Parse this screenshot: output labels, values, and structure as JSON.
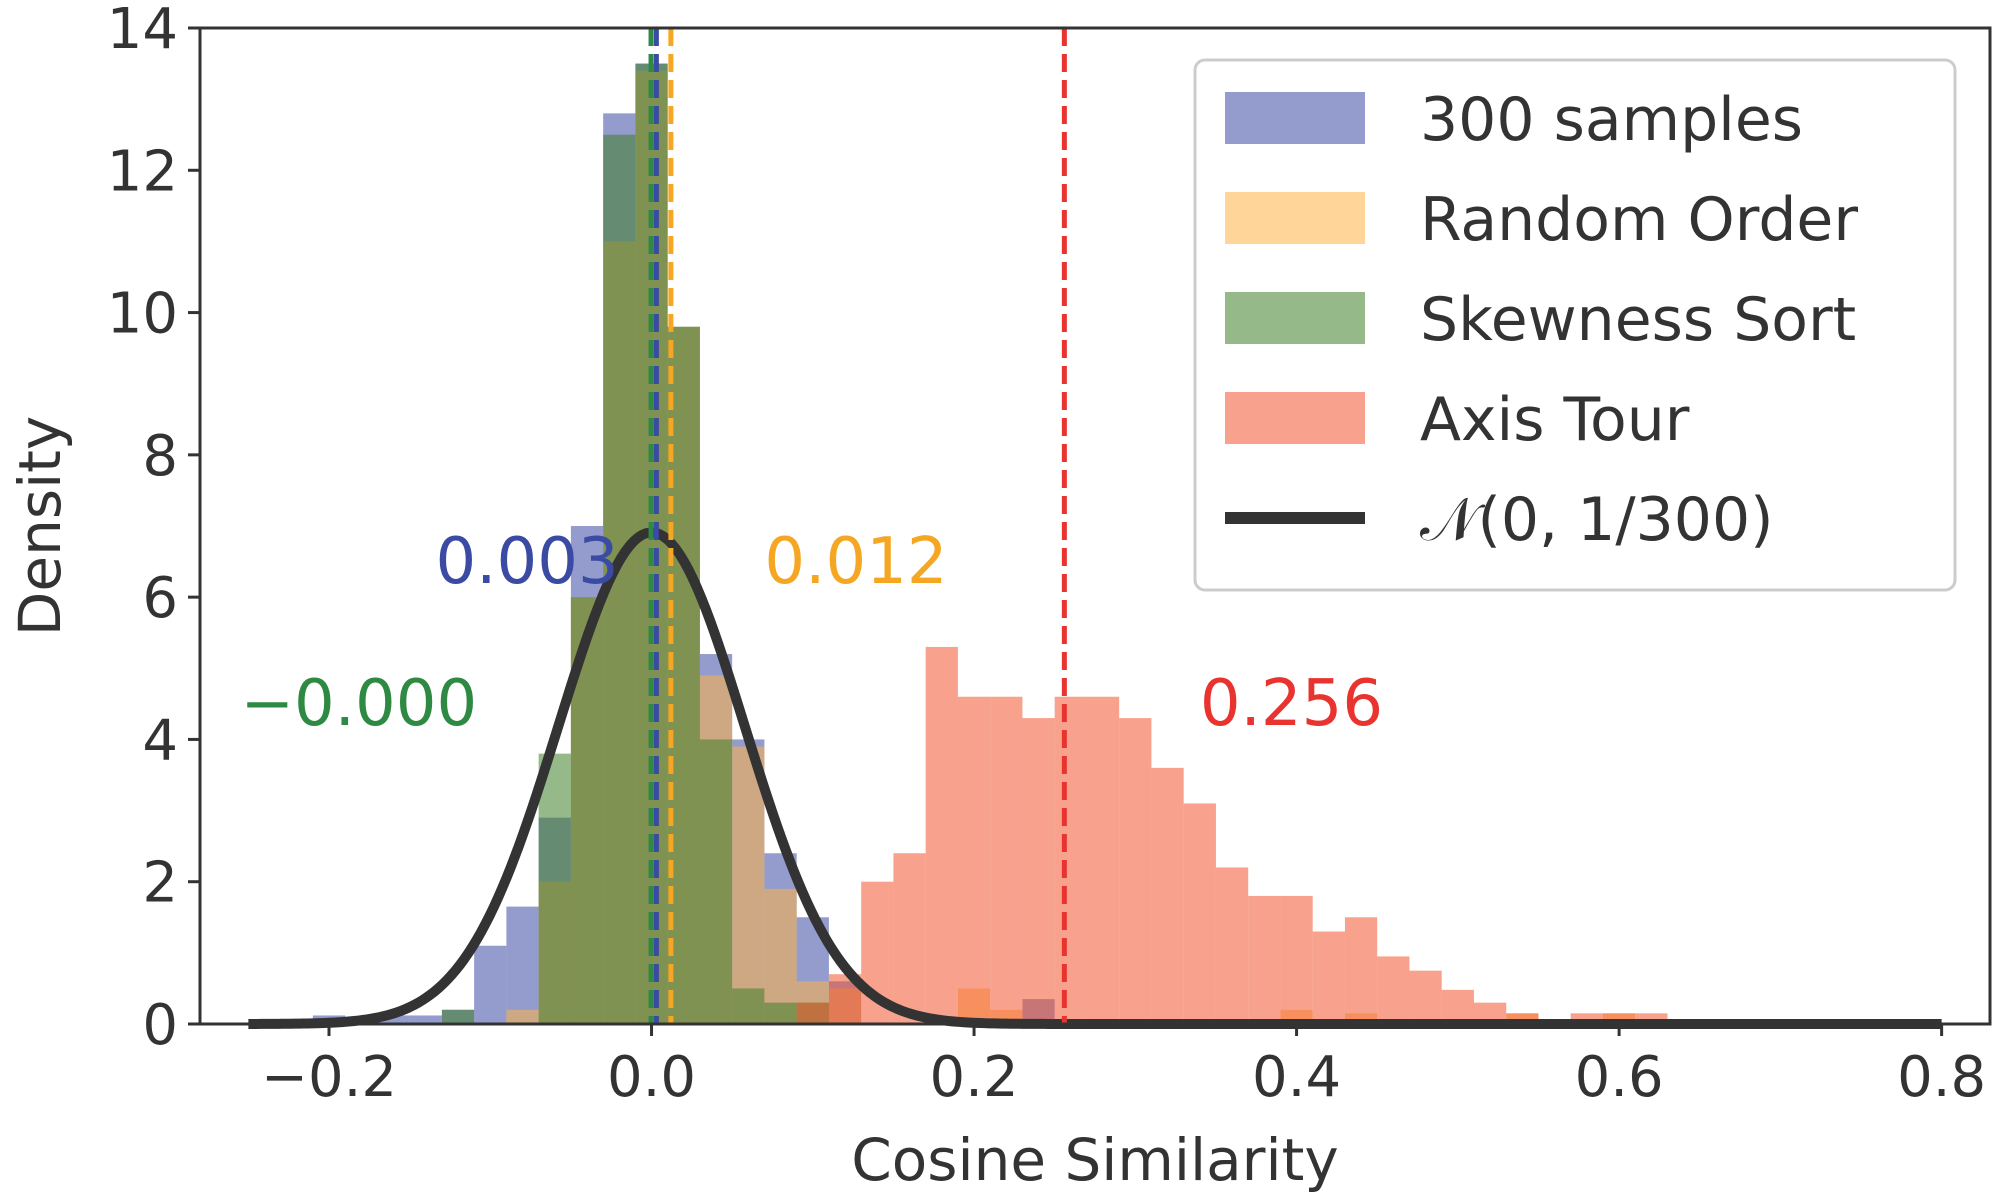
{
  "chart_data": {
    "type": "bar",
    "subtype": "overlaid-histogram",
    "title": "",
    "xlabel": "Cosine Similarity",
    "ylabel": "Density",
    "xlim": [
      -0.28,
      0.83
    ],
    "ylim": [
      0,
      14
    ],
    "xticks": [
      -0.2,
      0.0,
      0.2,
      0.4,
      0.6,
      0.8
    ],
    "xtick_labels": [
      "−0.2",
      "0.0",
      "0.2",
      "0.4",
      "0.6",
      "0.8"
    ],
    "yticks": [
      0,
      2,
      4,
      6,
      8,
      10,
      12,
      14
    ],
    "ytick_labels": [
      "0",
      "2",
      "4",
      "6",
      "8",
      "10",
      "12",
      "14"
    ],
    "grid": false,
    "legend_position": "top-right",
    "series": [
      {
        "name": "300 samples",
        "color": "#3b4aa3",
        "opacity": 0.55,
        "bin_width": 0.02,
        "bins": [
          [
            -0.21,
            0.12
          ],
          [
            -0.17,
            0.12
          ],
          [
            -0.15,
            0.12
          ],
          [
            -0.13,
            0.2
          ],
          [
            -0.11,
            1.1
          ],
          [
            -0.09,
            1.65
          ],
          [
            -0.07,
            2.9
          ],
          [
            -0.05,
            7.0
          ],
          [
            -0.03,
            12.8
          ],
          [
            -0.01,
            13.5
          ],
          [
            0.01,
            9.8
          ],
          [
            0.03,
            5.2
          ],
          [
            0.05,
            4.0
          ],
          [
            0.07,
            2.4
          ],
          [
            0.09,
            1.5
          ],
          [
            0.11,
            0.6
          ],
          [
            0.23,
            0.35
          ]
        ]
      },
      {
        "name": "Random Order",
        "color": "#ffb347",
        "opacity": 0.55,
        "bin_width": 0.02,
        "bins": [
          [
            -0.09,
            0.2
          ],
          [
            -0.07,
            2.0
          ],
          [
            -0.05,
            6.0
          ],
          [
            -0.03,
            11.0
          ],
          [
            -0.01,
            13.4
          ],
          [
            0.01,
            9.8
          ],
          [
            0.03,
            4.9
          ],
          [
            0.05,
            3.9
          ],
          [
            0.07,
            1.9
          ],
          [
            0.09,
            0.6
          ],
          [
            0.11,
            0.5
          ],
          [
            0.19,
            0.5
          ],
          [
            0.21,
            0.2
          ],
          [
            0.39,
            0.2
          ],
          [
            0.43,
            0.15
          ],
          [
            0.53,
            0.15
          ],
          [
            0.59,
            0.15
          ]
        ]
      },
      {
        "name": "Skewness Sort",
        "color": "#3f7f2a",
        "opacity": 0.55,
        "bin_width": 0.02,
        "bins": [
          [
            -0.13,
            0.2
          ],
          [
            -0.07,
            3.8
          ],
          [
            -0.05,
            6.0
          ],
          [
            -0.03,
            12.5
          ],
          [
            -0.01,
            13.5
          ],
          [
            0.01,
            9.8
          ],
          [
            0.03,
            4.0
          ],
          [
            0.05,
            0.5
          ],
          [
            0.07,
            0.3
          ],
          [
            0.09,
            0.3
          ]
        ]
      },
      {
        "name": "Axis Tour",
        "color": "#f2562f",
        "opacity": 0.55,
        "bin_width": 0.02,
        "bins": [
          [
            0.09,
            0.3
          ],
          [
            0.11,
            0.7
          ],
          [
            0.13,
            2.0
          ],
          [
            0.15,
            2.4
          ],
          [
            0.17,
            5.3
          ],
          [
            0.19,
            4.6
          ],
          [
            0.21,
            4.6
          ],
          [
            0.23,
            4.3
          ],
          [
            0.25,
            4.6
          ],
          [
            0.27,
            4.6
          ],
          [
            0.29,
            4.3
          ],
          [
            0.31,
            3.6
          ],
          [
            0.33,
            3.1
          ],
          [
            0.35,
            2.2
          ],
          [
            0.37,
            1.8
          ],
          [
            0.39,
            1.8
          ],
          [
            0.41,
            1.3
          ],
          [
            0.43,
            1.5
          ],
          [
            0.45,
            0.95
          ],
          [
            0.47,
            0.75
          ],
          [
            0.49,
            0.48
          ],
          [
            0.51,
            0.3
          ],
          [
            0.53,
            0.15
          ],
          [
            0.57,
            0.15
          ],
          [
            0.59,
            0.15
          ],
          [
            0.61,
            0.15
          ]
        ]
      },
      {
        "name": "𝒩(0, 1/300)",
        "type": "line",
        "color": "#333333",
        "mean": 0,
        "variance": 0.003333,
        "x_range": [
          -0.25,
          0.8
        ]
      }
    ],
    "mean_lines": [
      {
        "x": 0.003,
        "label": "0.003",
        "color": "#3b4aa3"
      },
      {
        "x": 0.012,
        "label": "0.012",
        "color": "#f5a623"
      },
      {
        "x": -0.0003,
        "label": "−0.000",
        "color": "#2e8a43"
      },
      {
        "x": 0.256,
        "label": "0.256",
        "color": "#e8332f"
      }
    ]
  }
}
